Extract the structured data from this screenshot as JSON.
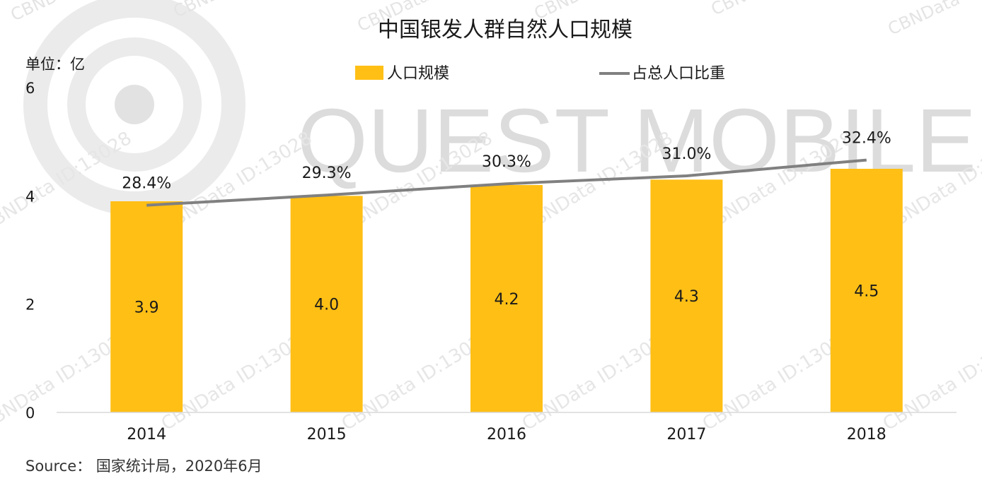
{
  "colors": {
    "bar": "#FFBF15",
    "line": "#808080",
    "axis": "#D9D9D9",
    "watermark": "#C8C8C8"
  },
  "watermark": {
    "brand": "QUEST MOBILE",
    "tag": "CBNData",
    "tag_id": "CBNData ID:13028"
  },
  "unit_label": "单位：亿",
  "source": "Source： 国家统计局，2020年6月",
  "chart_data": {
    "type": "bar",
    "title": "中国银发人群自然人口规模",
    "categories": [
      "2014",
      "2015",
      "2016",
      "2017",
      "2018"
    ],
    "ylim": [
      0,
      6
    ],
    "yticks": [
      0,
      2,
      4,
      6
    ],
    "grid": false,
    "legend_position": "top",
    "series": [
      {
        "name": "人口规模",
        "type": "bar",
        "values": [
          3.9,
          4.0,
          4.2,
          4.3,
          4.5
        ],
        "labels": [
          "3.9",
          "4.0",
          "4.2",
          "4.3",
          "4.5"
        ]
      },
      {
        "name": "占总人口比重",
        "type": "line",
        "values": [
          28.4,
          29.3,
          30.3,
          31.0,
          32.4
        ],
        "labels": [
          "28.4%",
          "29.3%",
          "30.3%",
          "31.0%",
          "32.4%"
        ]
      }
    ]
  }
}
